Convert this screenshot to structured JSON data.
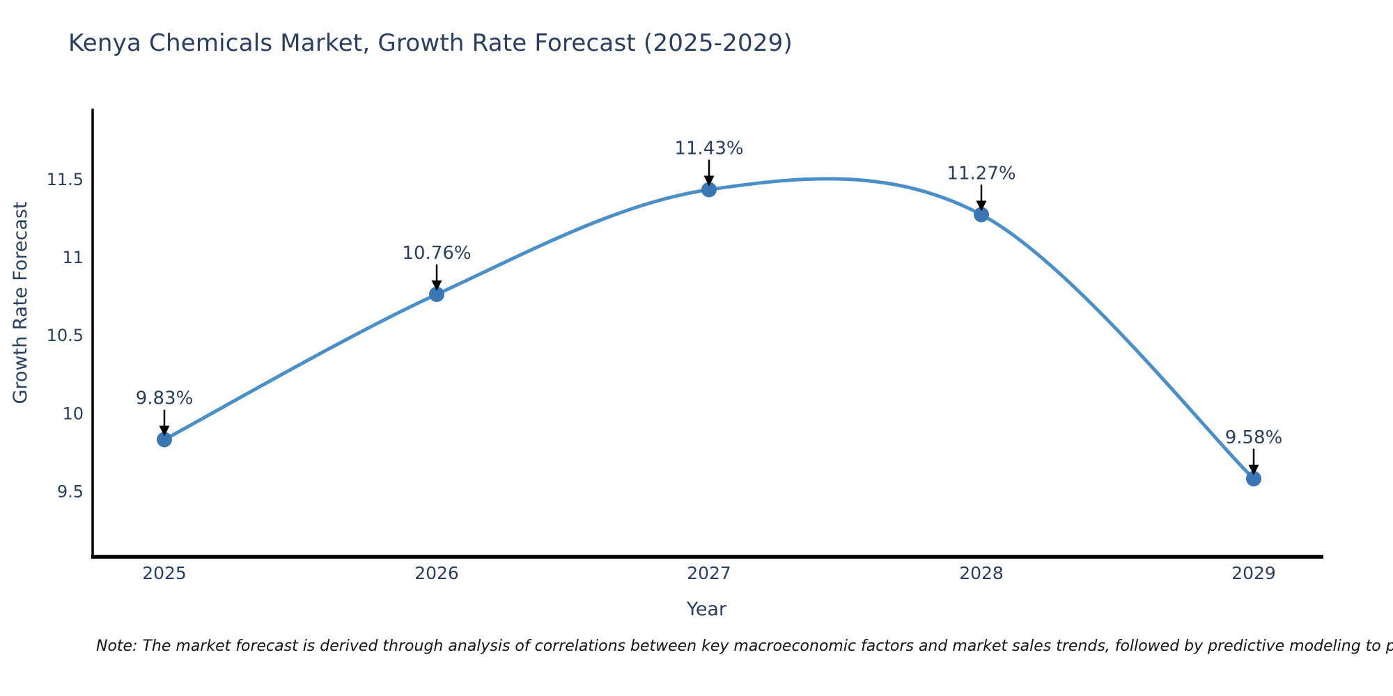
{
  "chart_data": {
    "type": "line",
    "title": "Kenya Chemicals Market, Growth Rate Forecast (2025-2029)",
    "xlabel": "Year",
    "ylabel": "Growth Rate Forecast",
    "categories": [
      "2025",
      "2026",
      "2027",
      "2028",
      "2029"
    ],
    "values": [
      9.83,
      10.76,
      11.43,
      11.27,
      9.58
    ],
    "point_labels": [
      "9.83%",
      "10.76%",
      "11.43%",
      "11.27%",
      "9.58%"
    ],
    "ytick_labels": [
      "9.5",
      "10",
      "10.5",
      "11",
      "11.5"
    ],
    "ytick_values": [
      9.5,
      10,
      10.5,
      11,
      11.5
    ],
    "ylim": [
      9.08,
      11.94
    ],
    "grid": false,
    "legend_position": "none",
    "line_shape": "spline",
    "colors": {
      "line": "#4a8fc7",
      "marker": "#3a76b4",
      "arrow": "#000000",
      "axis": "#000000",
      "text": "#2a3f5f"
    }
  },
  "note": "Note: The market forecast is derived through analysis of correlations between key macroeconomic factors and market sales trends, followed by predictive modeling to project future sal"
}
